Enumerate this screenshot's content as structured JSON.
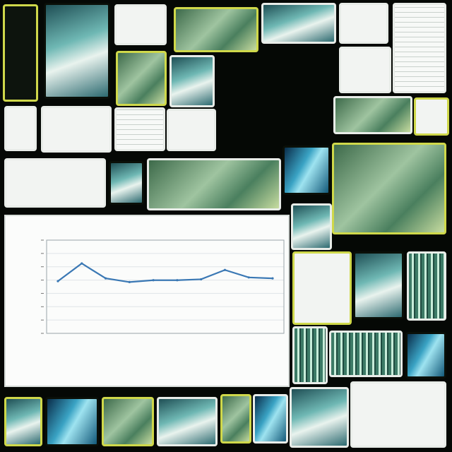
{
  "collage": {
    "tiles": [
      {
        "name": "thumb-abstract-phone",
        "style": "dark yellow"
      },
      {
        "name": "thumb-mask-sculpture",
        "style": "teal"
      },
      {
        "name": "thumb-document-scan",
        "style": "paper white"
      },
      {
        "name": "thumb-forest-photo",
        "style": "green yellow"
      },
      {
        "name": "thumb-stone-carving",
        "style": "teal white"
      },
      {
        "name": "thumb-report-page",
        "style": "paper white"
      },
      {
        "name": "thumb-spreadsheet-page",
        "style": "lines white"
      },
      {
        "name": "thumb-circuit-board",
        "style": "green yellow"
      },
      {
        "name": "thumb-fern-leaf",
        "style": "teal white"
      },
      {
        "name": "thumb-line-chart-small",
        "style": "paper white"
      },
      {
        "name": "thumb-bar-chart-small",
        "style": "paper white"
      },
      {
        "name": "thumb-table-scan",
        "style": "lines white"
      },
      {
        "name": "thumb-tiled-chart",
        "style": "paper white"
      },
      {
        "name": "thumb-palm-leaves",
        "style": "green white"
      },
      {
        "name": "thumb-area-chart",
        "style": "paper white"
      },
      {
        "name": "thumb-fish-photo",
        "style": "teal"
      },
      {
        "name": "thumb-microbe-photo",
        "style": "green white"
      },
      {
        "name": "thumb-moss-closeup",
        "style": "blue"
      },
      {
        "name": "thumb-rock-formation",
        "style": "green yellow"
      },
      {
        "name": "thumb-cloud-photo",
        "style": "teal white"
      },
      {
        "name": "thumb-yellow-line-chart",
        "style": "paper yellow"
      },
      {
        "name": "thumb-eye-icon",
        "style": "teal"
      },
      {
        "name": "thumb-reeds-1",
        "style": "stripes white"
      },
      {
        "name": "thumb-reeds-2",
        "style": "stripes white"
      },
      {
        "name": "thumb-reeds-3",
        "style": "stripes white"
      },
      {
        "name": "thumb-marble-sphere",
        "style": "blue"
      },
      {
        "name": "thumb-waterfall",
        "style": "teal yellow"
      },
      {
        "name": "thumb-lens-photo",
        "style": "blue"
      },
      {
        "name": "thumb-leaf-1",
        "style": "green yellow"
      },
      {
        "name": "thumb-leaf-2",
        "style": "teal white"
      },
      {
        "name": "thumb-leaf-3",
        "style": "green yellow"
      },
      {
        "name": "thumb-water-ripples",
        "style": "blue white"
      },
      {
        "name": "thumb-shell",
        "style": "teal white"
      },
      {
        "name": "thumb-coin",
        "style": "paper white"
      },
      {
        "name": "thumb-wheat-print",
        "style": "paper yellow"
      },
      {
        "name": "thumb-histogram-chart",
        "style": "paper white"
      }
    ]
  },
  "chart_data": {
    "type": "line",
    "title": "",
    "xlabel": "",
    "ylabel": "",
    "categories": [
      "",
      "",
      "",
      "",
      "",
      "",
      "",
      "",
      "",
      ""
    ],
    "values": [
      5.6,
      7.5,
      5.9,
      5.5,
      5.7,
      5.7,
      5.8,
      6.8,
      6.0,
      5.9
    ],
    "ylim": [
      0,
      10
    ],
    "line_color": "#3a78b4",
    "grid": true
  }
}
